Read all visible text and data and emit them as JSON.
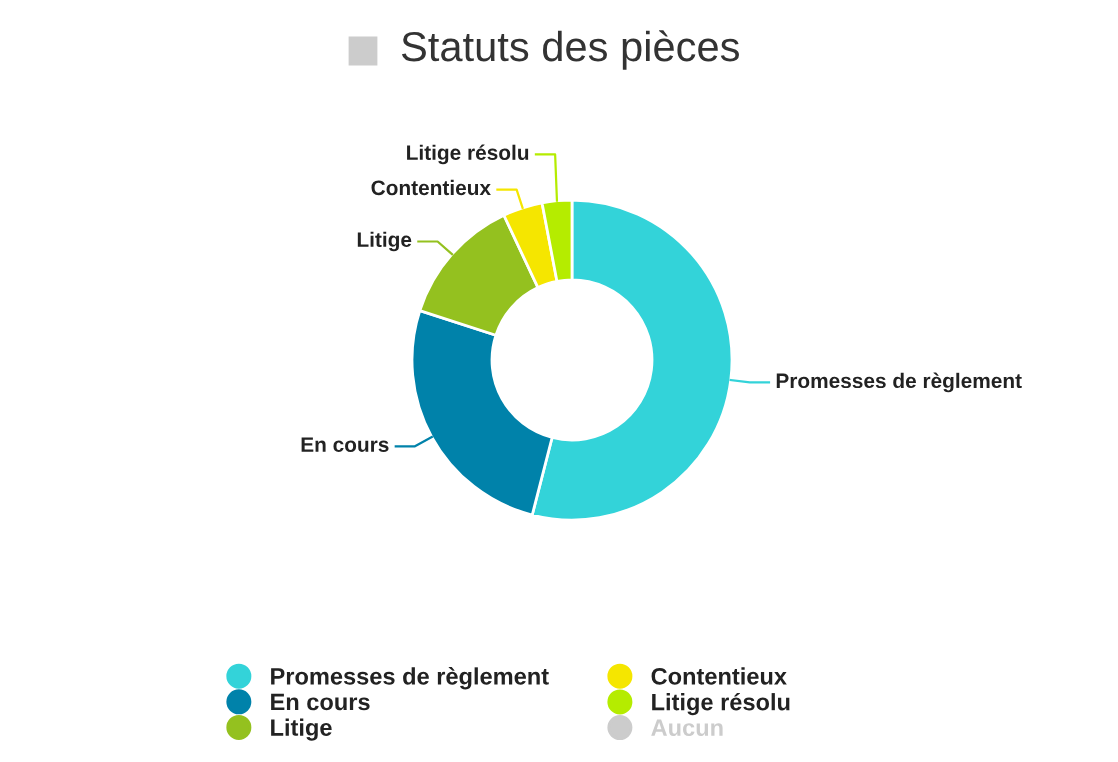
{
  "chart_data": {
    "type": "donut",
    "title": "Statuts des pièces",
    "categories": [
      "Promesses de règlement",
      "En cours",
      "Litige",
      "Contentieux",
      "Litige résolu",
      "Aucun"
    ],
    "values": [
      54,
      26,
      13,
      4,
      3,
      null
    ],
    "colors": [
      "#33d3d9",
      "#0082aa",
      "#94c11f",
      "#f5e600",
      "#b5ec00",
      "#cccccc"
    ],
    "legend": "bottom"
  }
}
